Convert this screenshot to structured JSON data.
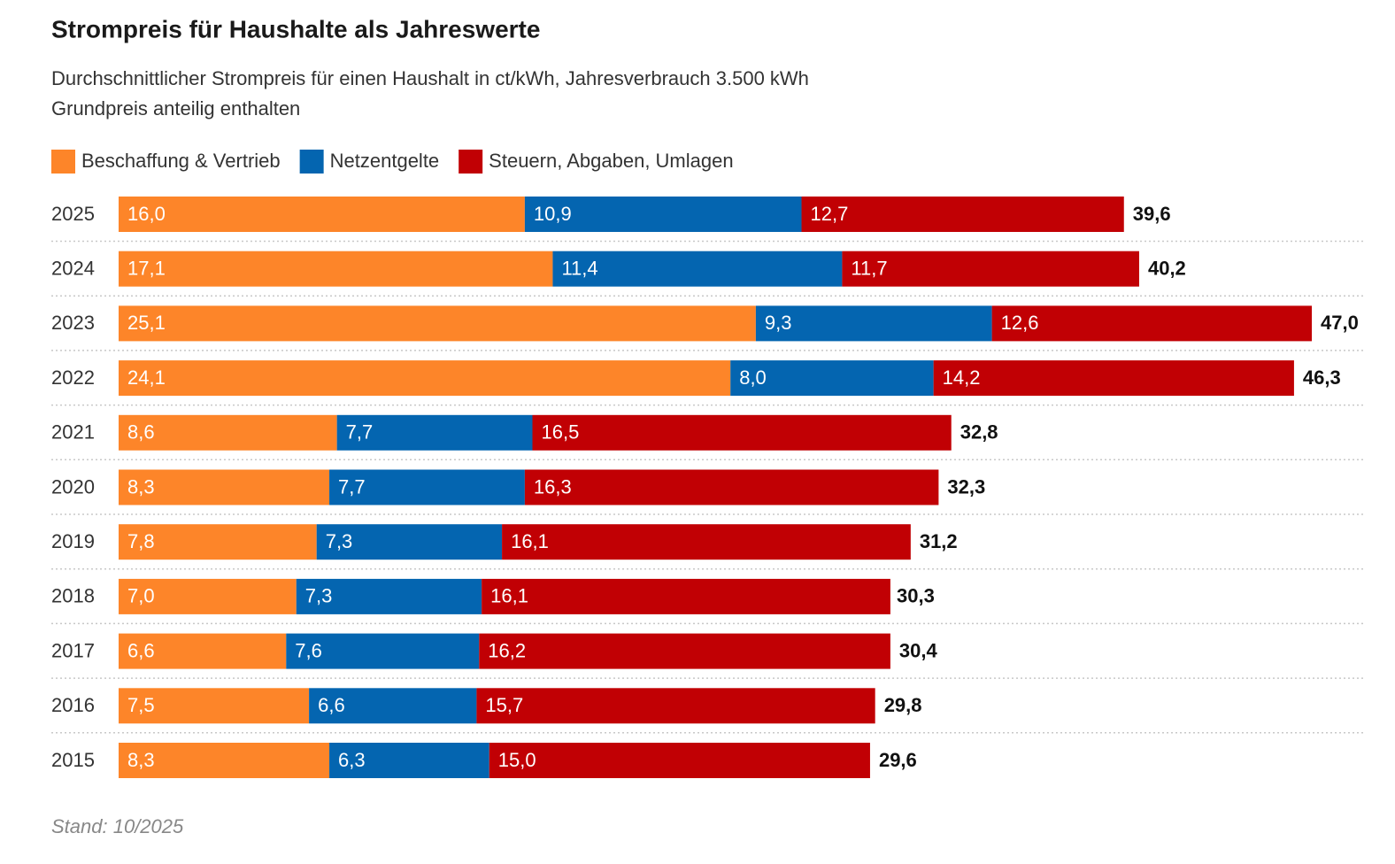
{
  "chart_data": {
    "type": "stacked-bar",
    "title": "Strompreis für Haushalte als Jahreswerte",
    "subtitle": [
      "Durchschnittlicher Strompreis für einen Haushalt in ct/kWh, Jahresverbrauch 3.500 kWh",
      "Grundpreis anteilig enthalten"
    ],
    "categories": [
      "2025",
      "2024",
      "2023",
      "2022",
      "2021",
      "2020",
      "2019",
      "2018",
      "2017",
      "2016",
      "2015"
    ],
    "series": [
      {
        "name": "Beschaffung & Vertrieb",
        "color": "#fd8529",
        "values": [
          16.0,
          17.1,
          25.1,
          24.1,
          8.6,
          8.3,
          7.8,
          7.0,
          6.6,
          7.5,
          8.3
        ],
        "value_labels": [
          "16,0",
          "17,1",
          "25,1",
          "24,1",
          "8,6",
          "8,3",
          "7,8",
          "7,0",
          "6,6",
          "7,5",
          "8,3"
        ]
      },
      {
        "name": "Netzentgelte",
        "color": "#0465b0",
        "values": [
          10.9,
          11.4,
          9.3,
          8.0,
          7.7,
          7.7,
          7.3,
          7.3,
          7.6,
          6.6,
          6.3
        ],
        "value_labels": [
          "10,9",
          "11,4",
          "9,3",
          "8,0",
          "7,7",
          "7,7",
          "7,3",
          "7,3",
          "7,6",
          "6,6",
          "6,3"
        ]
      },
      {
        "name": "Steuern, Abgaben, Umlagen",
        "color": "#c10004",
        "values": [
          12.7,
          11.7,
          12.6,
          14.2,
          16.5,
          16.3,
          16.1,
          16.1,
          16.2,
          15.7,
          15.0
        ],
        "value_labels": [
          "12,7",
          "11,7",
          "12,6",
          "14,2",
          "16,5",
          "16,3",
          "16,1",
          "16,1",
          "16,2",
          "15,7",
          "15,0"
        ]
      }
    ],
    "totals": [
      39.6,
      40.2,
      47.0,
      46.3,
      32.8,
      32.3,
      31.2,
      30.3,
      30.4,
      29.8,
      29.6
    ],
    "total_labels": [
      "39,6",
      "40,2",
      "47,0",
      "46,3",
      "32,8",
      "32,3",
      "31,2",
      "30,3",
      "30,4",
      "29,8",
      "29,6"
    ],
    "note": "Stand: 10/2025"
  }
}
